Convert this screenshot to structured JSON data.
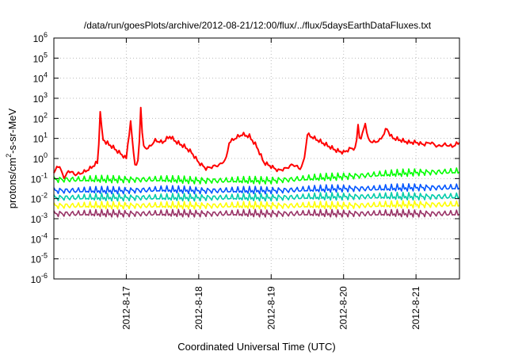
{
  "chart_data": {
    "type": "line",
    "title": "/data/run/goesPlots/archive/2012-08-21/12:00/flux/../flux/5daysEarthDataFluxes.txt",
    "xlabel": "Coordinated Universal Time (UTC)",
    "ylabel": {
      "prefix": "protons/cm",
      "superscript": "2",
      "suffix": "-s-sr-MeV"
    },
    "y_scale": "log",
    "ylim_exponents": [
      -6,
      6
    ],
    "y_tick_base": "10",
    "y_tick_exponents": [
      "-6",
      "-5",
      "-4",
      "-3",
      "-2",
      "-1",
      "0",
      "1",
      "2",
      "3",
      "4",
      "5",
      "6"
    ],
    "x_start": "2012-08-16",
    "xlim_days": [
      0.0,
      5.6
    ],
    "x_ticks": [
      {
        "label": "2012-8-17",
        "day": 1.0
      },
      {
        "label": "2012-8-18",
        "day": 2.0
      },
      {
        "label": "2012-8-19",
        "day": 3.0
      },
      {
        "label": "2012-8-20",
        "day": 4.0
      },
      {
        "label": "2012-8-21",
        "day": 5.0
      }
    ],
    "grid": true,
    "legend": "none",
    "series": [
      {
        "color": "#ff0000",
        "points": [
          [
            0.0,
            -0.8
          ],
          [
            0.05,
            -0.3
          ],
          [
            0.1,
            -0.6
          ],
          [
            0.15,
            -1.0
          ],
          [
            0.2,
            -0.6
          ],
          [
            0.3,
            -0.8
          ],
          [
            0.4,
            -0.7
          ],
          [
            0.5,
            -0.5
          ],
          [
            0.6,
            -0.2
          ],
          [
            0.62,
            0.7
          ],
          [
            0.64,
            2.4
          ],
          [
            0.67,
            1.0
          ],
          [
            0.72,
            0.8
          ],
          [
            0.8,
            0.6
          ],
          [
            0.9,
            0.3
          ],
          [
            1.0,
            0.0
          ],
          [
            1.02,
            0.7
          ],
          [
            1.06,
            1.8
          ],
          [
            1.1,
            0.3
          ],
          [
            1.13,
            -0.5
          ],
          [
            1.17,
            0.0
          ],
          [
            1.2,
            2.6
          ],
          [
            1.23,
            0.6
          ],
          [
            1.3,
            0.5
          ],
          [
            1.4,
            0.9
          ],
          [
            1.5,
            0.8
          ],
          [
            1.6,
            1.1
          ],
          [
            1.7,
            0.8
          ],
          [
            1.8,
            0.6
          ],
          [
            1.9,
            0.3
          ],
          [
            2.0,
            -0.2
          ],
          [
            2.1,
            -0.5
          ],
          [
            2.2,
            -0.4
          ],
          [
            2.3,
            -0.3
          ],
          [
            2.38,
            0.0
          ],
          [
            2.42,
            0.8
          ],
          [
            2.5,
            1.0
          ],
          [
            2.6,
            1.2
          ],
          [
            2.7,
            1.1
          ],
          [
            2.8,
            0.6
          ],
          [
            2.9,
            -0.2
          ],
          [
            3.0,
            -0.4
          ],
          [
            3.1,
            -0.6
          ],
          [
            3.2,
            -0.5
          ],
          [
            3.3,
            -0.3
          ],
          [
            3.4,
            -0.5
          ],
          [
            3.45,
            -0.2
          ],
          [
            3.5,
            1.2
          ],
          [
            3.6,
            1.0
          ],
          [
            3.7,
            0.8
          ],
          [
            3.8,
            0.6
          ],
          [
            3.9,
            0.4
          ],
          [
            4.0,
            0.3
          ],
          [
            4.1,
            0.5
          ],
          [
            4.17,
            0.5
          ],
          [
            4.2,
            1.7
          ],
          [
            4.23,
            0.8
          ],
          [
            4.3,
            1.8
          ],
          [
            4.33,
            1.0
          ],
          [
            4.4,
            0.8
          ],
          [
            4.5,
            0.9
          ],
          [
            4.6,
            1.5
          ],
          [
            4.65,
            1.1
          ],
          [
            4.7,
            1.0
          ],
          [
            4.8,
            0.9
          ],
          [
            4.9,
            0.8
          ],
          [
            5.0,
            0.8
          ],
          [
            5.1,
            0.7
          ],
          [
            5.2,
            0.8
          ],
          [
            5.3,
            0.6
          ],
          [
            5.4,
            0.7
          ],
          [
            5.5,
            0.6
          ],
          [
            5.6,
            0.8
          ]
        ]
      },
      {
        "color": "#00ff00",
        "points": [
          [
            0.0,
            -1.05
          ],
          [
            0.5,
            -1.05
          ],
          [
            1.0,
            -1.05
          ],
          [
            1.5,
            -1.05
          ],
          [
            2.0,
            -1.1
          ],
          [
            2.5,
            -1.1
          ],
          [
            3.0,
            -1.1
          ],
          [
            3.5,
            -1.0
          ],
          [
            4.0,
            -0.9
          ],
          [
            4.5,
            -0.8
          ],
          [
            5.0,
            -0.7
          ],
          [
            5.6,
            -0.65
          ]
        ]
      },
      {
        "color": "#0055ff",
        "points": [
          [
            0.0,
            -1.6
          ],
          [
            0.5,
            -1.6
          ],
          [
            1.0,
            -1.6
          ],
          [
            1.5,
            -1.55
          ],
          [
            2.0,
            -1.6
          ],
          [
            2.5,
            -1.6
          ],
          [
            3.0,
            -1.6
          ],
          [
            3.5,
            -1.55
          ],
          [
            4.0,
            -1.5
          ],
          [
            4.5,
            -1.5
          ],
          [
            5.0,
            -1.45
          ],
          [
            5.6,
            -1.45
          ]
        ]
      },
      {
        "color": "#00ccaa",
        "points": [
          [
            0.0,
            -1.95
          ],
          [
            1.0,
            -1.95
          ],
          [
            2.0,
            -1.95
          ],
          [
            3.0,
            -1.95
          ],
          [
            4.0,
            -1.9
          ],
          [
            5.0,
            -1.9
          ],
          [
            5.6,
            -1.9
          ]
        ]
      },
      {
        "color": "#ffff00",
        "points": [
          [
            0.0,
            -2.35
          ],
          [
            1.0,
            -2.35
          ],
          [
            2.0,
            -2.35
          ],
          [
            3.0,
            -2.35
          ],
          [
            4.0,
            -2.35
          ],
          [
            5.0,
            -2.3
          ],
          [
            5.6,
            -2.3
          ]
        ]
      },
      {
        "color": "#993366",
        "points": [
          [
            0.0,
            -2.75
          ],
          [
            1.0,
            -2.75
          ],
          [
            2.0,
            -2.75
          ],
          [
            3.0,
            -2.75
          ],
          [
            4.0,
            -2.75
          ],
          [
            5.0,
            -2.75
          ],
          [
            5.6,
            -2.75
          ]
        ]
      }
    ]
  }
}
